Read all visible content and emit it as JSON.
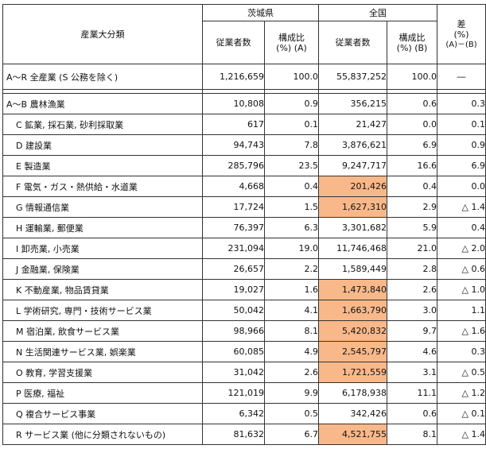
{
  "header": {
    "category": "産業大分類",
    "ibaraki": "茨城県",
    "national": "全国",
    "diff_line1": "差",
    "diff_line2": "(%)",
    "diff_line3": "(A)－(B)",
    "employees": "従業者数",
    "ratio_a_line1": "構成比",
    "ratio_a_line2": "(%) (A)",
    "employees_national": "従業者数",
    "ratio_b_line1": "構成比",
    "ratio_b_line2": "(%) (B)"
  },
  "total": {
    "name": "A～R 全産業 (S 公務を除く)",
    "ibaraki_emp": "1,216,659",
    "ibaraki_ratio": "100.0",
    "national_emp": "55,837,252",
    "national_ratio": "100.0",
    "diff": "―"
  },
  "rows": [
    {
      "name": "A～B 農林漁業",
      "indent": false,
      "ibaraki_emp": "10,808",
      "ibaraki_ratio": "0.9",
      "national_emp": "356,215",
      "national_ratio": "0.6",
      "diff": "0.3",
      "highlight": false
    },
    {
      "name": "C 鉱業, 採石業, 砂利採取業",
      "indent": true,
      "ibaraki_emp": "617",
      "ibaraki_ratio": "0.1",
      "national_emp": "21,427",
      "national_ratio": "0.0",
      "diff": "0.1",
      "highlight": false
    },
    {
      "name": "D 建設業",
      "indent": true,
      "ibaraki_emp": "94,743",
      "ibaraki_ratio": "7.8",
      "national_emp": "3,876,621",
      "national_ratio": "6.9",
      "diff": "0.9",
      "highlight": false
    },
    {
      "name": "E 製造業",
      "indent": true,
      "ibaraki_emp": "285,796",
      "ibaraki_ratio": "23.5",
      "national_emp": "9,247,717",
      "national_ratio": "16.6",
      "diff": "6.9",
      "highlight": false
    },
    {
      "name": "F 電気・ガス・熱供給・水道業",
      "indent": true,
      "ibaraki_emp": "4,668",
      "ibaraki_ratio": "0.4",
      "national_emp": "201,426",
      "national_ratio": "0.4",
      "diff": "0.0",
      "highlight": true
    },
    {
      "name": "G 情報通信業",
      "indent": true,
      "ibaraki_emp": "17,724",
      "ibaraki_ratio": "1.5",
      "national_emp": "1,627,310",
      "national_ratio": "2.9",
      "diff": "△ 1.4",
      "highlight": true
    },
    {
      "name": "H 運輸業, 郵便業",
      "indent": true,
      "ibaraki_emp": "76,397",
      "ibaraki_ratio": "6.3",
      "national_emp": "3,301,682",
      "national_ratio": "5.9",
      "diff": "0.4",
      "highlight": false
    },
    {
      "name": "I 卸売業, 小売業",
      "indent": true,
      "ibaraki_emp": "231,094",
      "ibaraki_ratio": "19.0",
      "national_emp": "11,746,468",
      "national_ratio": "21.0",
      "diff": "△ 2.0",
      "highlight": false
    },
    {
      "name": "J 金融業, 保険業",
      "indent": true,
      "ibaraki_emp": "26,657",
      "ibaraki_ratio": "2.2",
      "national_emp": "1,589,449",
      "national_ratio": "2.8",
      "diff": "△ 0.6",
      "highlight": false
    },
    {
      "name": "K 不動産業, 物品賃貸業",
      "indent": true,
      "ibaraki_emp": "19,027",
      "ibaraki_ratio": "1.6",
      "national_emp": "1,473,840",
      "national_ratio": "2.6",
      "diff": "△ 1.0",
      "highlight": true
    },
    {
      "name": "L 学術研究, 専門・技術サービス業",
      "indent": true,
      "ibaraki_emp": "50,042",
      "ibaraki_ratio": "4.1",
      "national_emp": "1,663,790",
      "national_ratio": "3.0",
      "diff": "1.1",
      "highlight": true
    },
    {
      "name": "M 宿泊業, 飲食サービス業",
      "indent": true,
      "ibaraki_emp": "98,966",
      "ibaraki_ratio": "8.1",
      "national_emp": "5,420,832",
      "national_ratio": "9.7",
      "diff": "△ 1.6",
      "highlight": true
    },
    {
      "name": "N 生活関連サービス業, 娯楽業",
      "indent": true,
      "ibaraki_emp": "60,085",
      "ibaraki_ratio": "4.9",
      "national_emp": "2,545,797",
      "national_ratio": "4.6",
      "diff": "0.3",
      "highlight": true
    },
    {
      "name": "O 教育, 学習支援業",
      "indent": true,
      "ibaraki_emp": "31,042",
      "ibaraki_ratio": "2.6",
      "national_emp": "1,721,559",
      "national_ratio": "3.1",
      "diff": "△ 0.5",
      "highlight": true
    },
    {
      "name": "P 医療, 福祉",
      "indent": true,
      "ibaraki_emp": "121,019",
      "ibaraki_ratio": "9.9",
      "national_emp": "6,178,938",
      "national_ratio": "11.1",
      "diff": "△ 1.2",
      "highlight": false
    },
    {
      "name": "Q 複合サービス事業",
      "indent": true,
      "ibaraki_emp": "6,342",
      "ibaraki_ratio": "0.5",
      "national_emp": "342,426",
      "national_ratio": "0.6",
      "diff": "△ 0.1",
      "highlight": false
    },
    {
      "name": "R サービス業 (他に分類されないもの)",
      "indent": true,
      "ibaraki_emp": "81,632",
      "ibaraki_ratio": "6.7",
      "national_emp": "4,521,755",
      "national_ratio": "8.1",
      "diff": "△ 1.4",
      "highlight": true
    }
  ],
  "colors": {
    "highlight": "#f9b88a",
    "border": "#333333"
  }
}
